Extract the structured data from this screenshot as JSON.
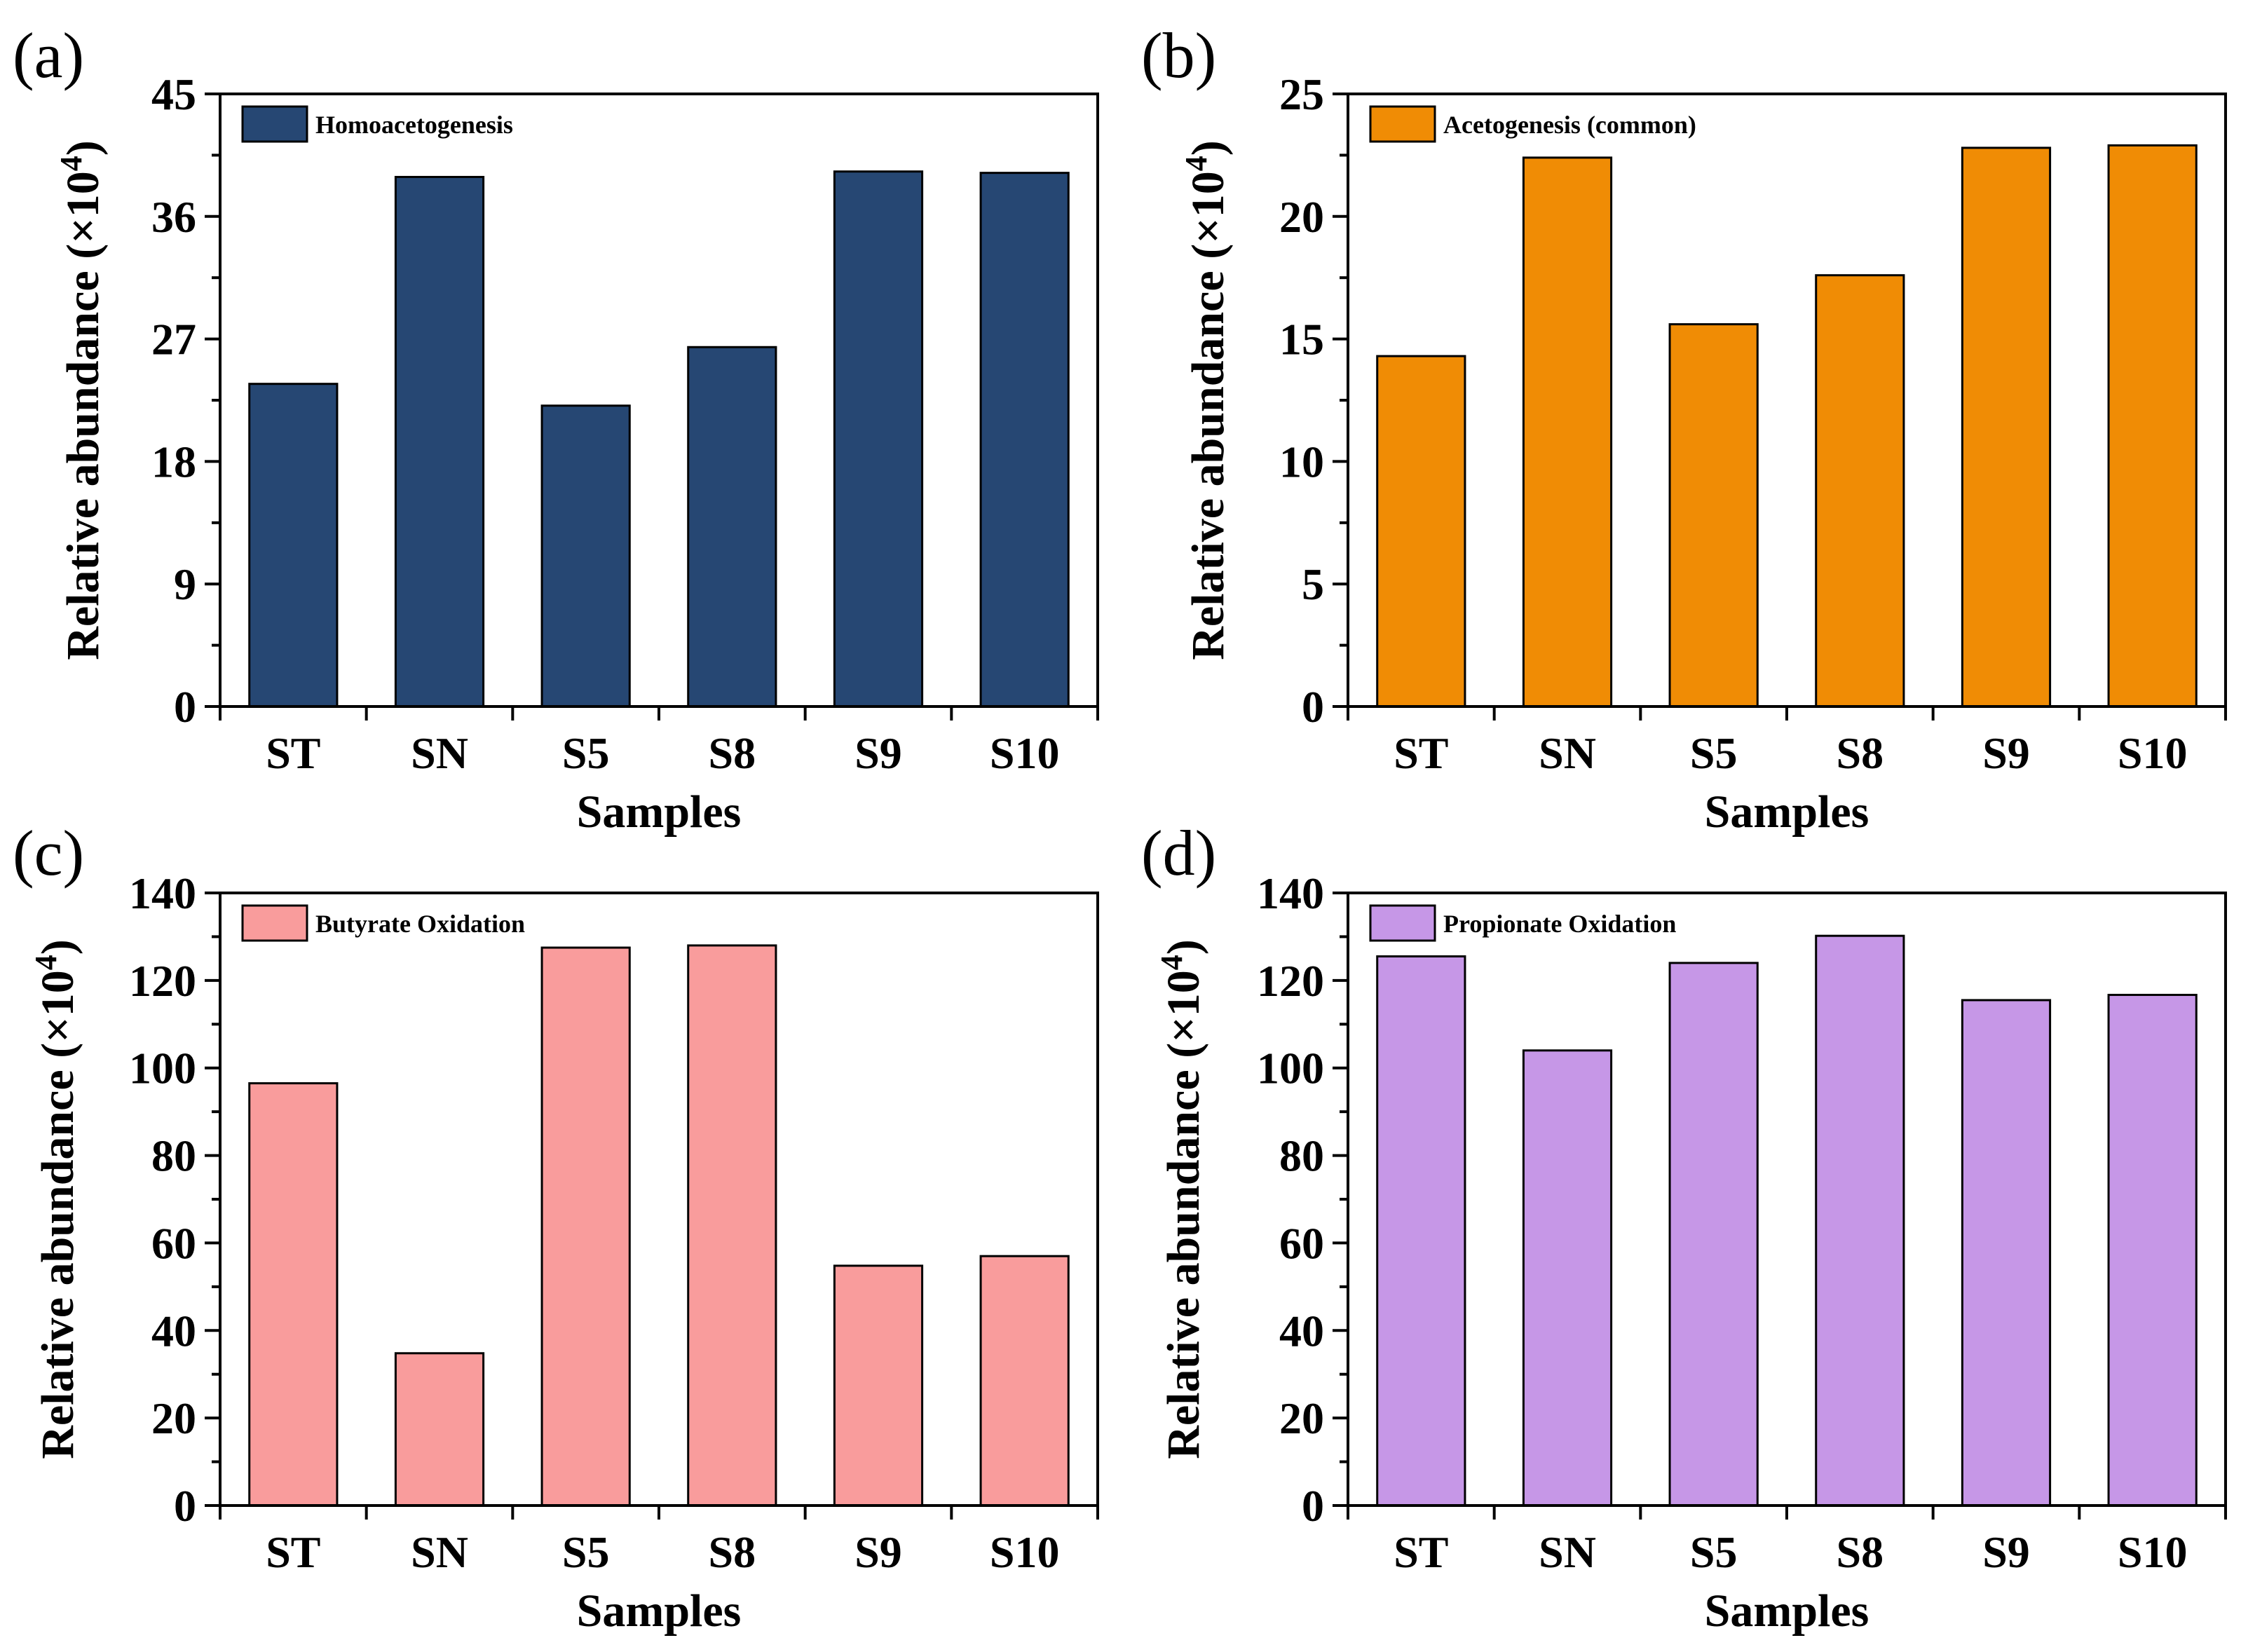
{
  "chart_data": [
    {
      "type": "bar",
      "panel_label": "(a)",
      "title": "",
      "legend": "Homoacetogenesis",
      "legend_position": "top-left",
      "color": "#264773",
      "categories": [
        "ST",
        "SN",
        "S5",
        "S8",
        "S9",
        "S10"
      ],
      "values": [
        23.7,
        38.9,
        22.1,
        26.4,
        39.3,
        39.2
      ],
      "xlabel": "Samples",
      "ylabel": "Relative abundance (×10",
      "ylabel_sup": "4",
      "ylabel_close": ")",
      "ylim": [
        0,
        45
      ],
      "yticks": [
        0,
        9,
        18,
        27,
        36,
        45
      ]
    },
    {
      "type": "bar",
      "panel_label": "(b)",
      "title": "",
      "legend": "Acetogenesis (common)",
      "legend_position": "top-left",
      "color": "#F08C05",
      "categories": [
        "ST",
        "SN",
        "S5",
        "S8",
        "S9",
        "S10"
      ],
      "values": [
        14.3,
        22.4,
        15.6,
        17.6,
        22.8,
        22.9
      ],
      "xlabel": "Samples",
      "ylabel": "Relative abundance (×10",
      "ylabel_sup": "4",
      "ylabel_close": ")",
      "ylim": [
        0,
        25
      ],
      "yticks": [
        0,
        5,
        10,
        15,
        20,
        25
      ]
    },
    {
      "type": "bar",
      "panel_label": "(c)",
      "title": "",
      "legend": "Butyrate Oxidation",
      "legend_position": "top-left",
      "color": "#F99C9C",
      "categories": [
        "ST",
        "SN",
        "S5",
        "S8",
        "S9",
        "S10"
      ],
      "values": [
        96.5,
        34.8,
        127.5,
        128.0,
        54.8,
        57.0
      ],
      "xlabel": "Samples",
      "ylabel": "Relative abundance (×10",
      "ylabel_sup": "4",
      "ylabel_close": ")",
      "ylim": [
        0,
        140
      ],
      "yticks": [
        0,
        20,
        40,
        60,
        80,
        100,
        120,
        140
      ]
    },
    {
      "type": "bar",
      "panel_label": "(d)",
      "title": "",
      "legend": "Propionate Oxidation",
      "legend_position": "top-left",
      "color": "#C697E7",
      "categories": [
        "ST",
        "SN",
        "S5",
        "S8",
        "S9",
        "S10"
      ],
      "values": [
        125.5,
        104.0,
        124.0,
        130.2,
        115.5,
        116.7
      ],
      "xlabel": "Samples",
      "ylabel": "Relative abundance (×10",
      "ylabel_sup": "4",
      "ylabel_close": ")",
      "ylim": [
        0,
        140
      ],
      "yticks": [
        0,
        20,
        40,
        60,
        80,
        100,
        120,
        140
      ]
    }
  ]
}
